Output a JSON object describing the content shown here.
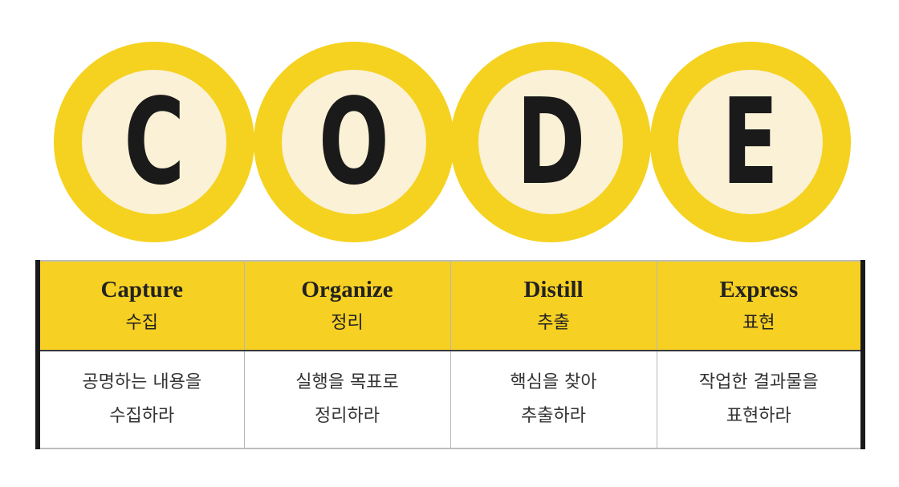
{
  "colors": {
    "ring": "#f5d21f",
    "circle_fill": "#fbf1d6",
    "header_fill": "#f6d023",
    "text": "#1a1a1a"
  },
  "letters": [
    "C",
    "O",
    "D",
    "E"
  ],
  "steps": [
    {
      "en": "Capture",
      "ko": "수집",
      "desc_line1": "공명하는 내용을",
      "desc_line2": "수집하라"
    },
    {
      "en": "Organize",
      "ko": "정리",
      "desc_line1": "실행을 목표로",
      "desc_line2": "정리하라"
    },
    {
      "en": "Distill",
      "ko": "추출",
      "desc_line1": "핵심을 찾아",
      "desc_line2": "추출하라"
    },
    {
      "en": "Express",
      "ko": "표현",
      "desc_line1": "작업한 결과물을",
      "desc_line2": "표현하라"
    }
  ]
}
